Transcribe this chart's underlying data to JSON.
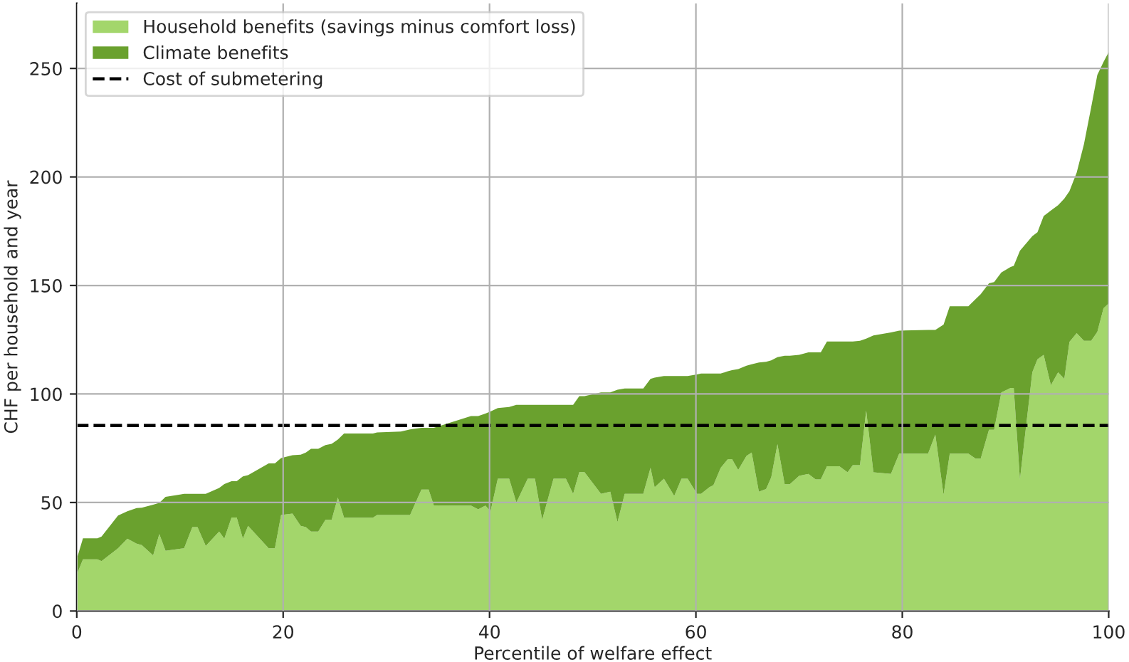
{
  "chart_data": {
    "type": "area",
    "stacked": true,
    "xlabel": "Percentile of welfare effect",
    "ylabel": "CHF per household and year",
    "x": [
      0,
      0.6,
      2.0,
      2.4,
      4.0,
      4.9,
      5.8,
      6.3,
      7.4,
      8.0,
      8.6,
      10.4,
      11.2,
      11.7,
      12.5,
      13.8,
      14.3,
      15.0,
      15.5,
      16.1,
      16.6,
      18.6,
      19.2,
      19.8,
      20.9,
      21.7,
      22.2,
      22.7,
      23.4,
      24.1,
      24.7,
      25.3,
      25.9,
      28.7,
      29.1,
      31.4,
      32.3,
      33.4,
      34.1,
      34.6,
      38.2,
      38.9,
      39.6,
      40.1,
      40.8,
      41.9,
      42.6,
      43.7,
      44.4,
      45.1,
      46.2,
      47.4,
      48.1,
      48.7,
      49.2,
      50.8,
      51.7,
      52.4,
      53.1,
      54.9,
      55.6,
      56.0,
      56.9,
      57.9,
      58.6,
      59.2,
      60.1,
      60.5,
      61.3,
      61.7,
      62.4,
      63.1,
      63.5,
      64.1,
      64.9,
      65.4,
      66.1,
      66.8,
      67.3,
      67.9,
      68.6,
      69.1,
      70.0,
      70.9,
      71.6,
      72.1,
      72.7,
      73.9,
      74.7,
      75.2,
      75.9,
      76.5,
      77.2,
      78.9,
      79.7,
      82.5,
      83.2,
      84.0,
      84.6,
      86.4,
      87.1,
      87.6,
      88.4,
      88.9,
      89.6,
      90.5,
      90.8,
      91.4,
      92.6,
      93.1,
      93.7,
      94.4,
      95.1,
      95.7,
      96.2,
      96.9,
      97.6,
      98.3,
      98.9,
      99.5,
      100
    ],
    "series": [
      {
        "name": "Household benefits (savings minus comfort loss)",
        "color": "#a3d66b",
        "values": [
          16.8,
          23.8,
          23.8,
          23.0,
          28.9,
          33.3,
          31.0,
          30.4,
          25.6,
          35.5,
          27.8,
          28.9,
          38.7,
          38.7,
          30.0,
          36.6,
          33.3,
          43.1,
          43.1,
          33.3,
          39.2,
          28.9,
          28.9,
          44.2,
          44.9,
          39.2,
          38.7,
          36.6,
          36.6,
          42.0,
          42.0,
          52.3,
          43.0,
          43.0,
          44.2,
          44.2,
          44.2,
          56.0,
          56.0,
          48.7,
          48.6,
          46.9,
          48.6,
          46.0,
          61.0,
          61.0,
          50.0,
          61.0,
          61.0,
          42.0,
          61.0,
          61.0,
          54.0,
          64.0,
          64.0,
          54.0,
          55.0,
          41.0,
          54.0,
          54.0,
          66.0,
          57.0,
          61.0,
          53.0,
          61.0,
          61.0,
          54.0,
          54.0,
          57.0,
          58.0,
          66.0,
          70.0,
          70.0,
          65.0,
          71.5,
          73.0,
          55.0,
          56.2,
          61.6,
          76.9,
          58.4,
          58.4,
          62.3,
          63.2,
          60.6,
          60.6,
          66.7,
          66.7,
          63.9,
          67.2,
          67.2,
          92.4,
          63.9,
          63.2,
          72.5,
          72.5,
          81.3,
          53.5,
          72.5,
          72.5,
          70.2,
          70.2,
          83.5,
          83.5,
          100.7,
          102.8,
          102.8,
          60.6,
          110.0,
          116.0,
          118.0,
          104.0,
          110.0,
          107.0,
          124.0,
          128.0,
          124.5,
          124.5,
          128.6,
          139.5,
          141.7
        ]
      },
      {
        "name": "Climate benefits",
        "color": "#6aa12e",
        "values": [
          7.2,
          9.7,
          9.7,
          11.3,
          15.1,
          12.7,
          16.4,
          17.2,
          23.4,
          14.3,
          24.8,
          25.1,
          15.3,
          15.3,
          24.0,
          20.1,
          25.2,
          16.7,
          16.7,
          28.7,
          23.4,
          39.1,
          39.1,
          26.3,
          26.9,
          32.8,
          34.3,
          38.1,
          38.1,
          34.5,
          35.0,
          26.7,
          38.8,
          38.8,
          38.1,
          38.5,
          39.5,
          28.4,
          28.4,
          35.7,
          41.2,
          42.9,
          42.4,
          46.0,
          32.5,
          33.0,
          45.0,
          34.0,
          34.0,
          53.0,
          34.0,
          34.0,
          41.0,
          35.0,
          35.0,
          46.7,
          45.7,
          61.0,
          48.5,
          48.5,
          41.0,
          50.5,
          47.3,
          55.3,
          47.3,
          47.3,
          55.0,
          55.4,
          52.4,
          51.4,
          43.4,
          40.5,
          41.0,
          46.5,
          41.5,
          40.7,
          59.5,
          58.6,
          53.9,
          40.1,
          59.2,
          59.2,
          55.7,
          56.0,
          58.6,
          58.6,
          57.5,
          57.5,
          60.3,
          57.0,
          57.3,
          33.1,
          63.1,
          65.2,
          56.7,
          57.0,
          48.2,
          78.5,
          67.9,
          67.9,
          73.5,
          75.8,
          67.5,
          68.1,
          55.3,
          55.7,
          56.2,
          105.4,
          62.7,
          58.5,
          64.0,
          80.5,
          77.0,
          83.0,
          69.5,
          74.0,
          90.5,
          107.5,
          118.4,
          113.5,
          115.8
        ]
      }
    ],
    "ref_lines": [
      {
        "axis": "y",
        "value": 85.5,
        "label": "Cost of submetering",
        "color": "#000000",
        "line_style": "dashed"
      }
    ],
    "xlim": [
      0,
      100
    ],
    "ylim": [
      0,
      280
    ],
    "xticks": [
      0,
      20,
      40,
      60,
      80,
      100
    ],
    "yticks": [
      0,
      50,
      100,
      150,
      200,
      250
    ],
    "grid": true,
    "legend": "top left"
  }
}
